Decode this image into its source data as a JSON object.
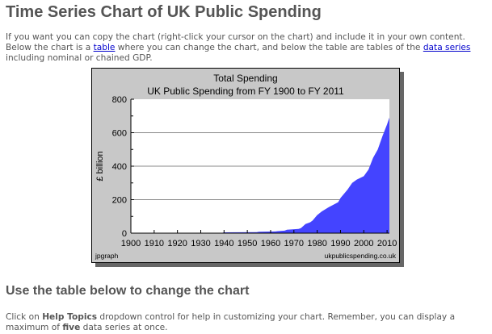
{
  "page": {
    "title": "Time Series Chart of UK Public Spending",
    "intro_1": "If you want you can copy the chart (right-click your cursor on the chart) and include it in your own content. Below the chart is a ",
    "intro_link_table": "table",
    "intro_2": " where you can change the chart, and below the table are tables of the ",
    "intro_link_data": "data series",
    "intro_3": " including nominal or chained GDP.",
    "section_title": "Use the table below to change the chart",
    "help_1": "Click on ",
    "help_bold": "Help Topics",
    "help_2": " dropdown control for help in customizing your chart. Remember, you can display a maximum of ",
    "help_bold2": "five",
    "help_3": " data series at once."
  },
  "chart_data": {
    "type": "area",
    "title": "Total Spending",
    "subtitle": "UK Public Spending from FY 1900 to FY 2011",
    "xlabel": "",
    "ylabel": "£ billion",
    "xlim": [
      1900,
      2011
    ],
    "ylim": [
      0,
      800
    ],
    "xticks": [
      "1900",
      "1910",
      "1920",
      "1930",
      "1940",
      "1950",
      "1960",
      "1970",
      "1980",
      "1990",
      "2000",
      "2010"
    ],
    "yticks": [
      "0",
      "200",
      "400",
      "600",
      "800"
    ],
    "grid": true,
    "color": "#4444ff",
    "credit_left": "jpgraph",
    "credit_right": "ukpublicspending.co.uk",
    "series": [
      {
        "name": "Total Spending",
        "x": [
          1900,
          1939,
          1940,
          1954,
          1955,
          1962,
          1963,
          1966,
          1967,
          1972,
          1973,
          1975,
          1977,
          1978,
          1980,
          1982,
          1985,
          1989,
          1990,
          1993,
          1995,
          1997,
          2000,
          2002,
          2004,
          2006,
          2008,
          2010,
          2011
        ],
        "values": [
          0.3,
          1,
          5,
          6,
          8,
          10,
          12,
          15,
          20,
          25,
          30,
          55,
          65,
          75,
          108,
          130,
          155,
          185,
          210,
          260,
          300,
          320,
          340,
          380,
          450,
          500,
          580,
          650,
          690
        ]
      }
    ]
  }
}
